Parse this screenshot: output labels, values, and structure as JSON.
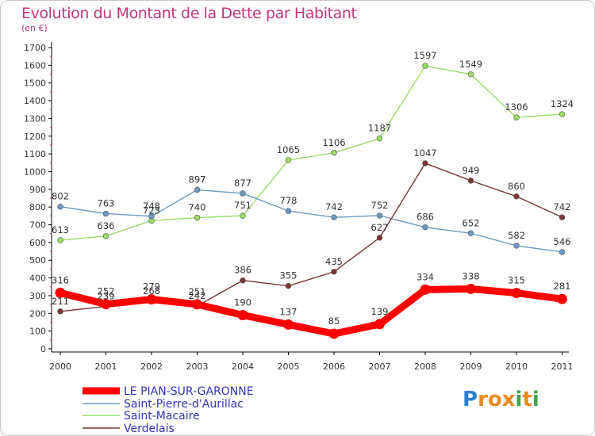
{
  "header": {
    "title": "Evolution du Montant de la Dette par Habitant",
    "subtitle": "(en €)"
  },
  "chart_data": {
    "type": "line",
    "title": "Evolution du Montant de la Dette par Habitant",
    "subtitle": "(en €)",
    "xlabel": "",
    "ylabel": "",
    "x": [
      "2000",
      "2001",
      "2002",
      "2003",
      "2004",
      "2005",
      "2006",
      "2007",
      "2008",
      "2009",
      "2010",
      "2011"
    ],
    "yticks": [
      0,
      100,
      200,
      300,
      400,
      500,
      600,
      700,
      800,
      900,
      1000,
      1100,
      1200,
      1300,
      1400,
      1500,
      1600,
      1700
    ],
    "ylim": [
      0,
      1700
    ],
    "grid": false,
    "legend_position": "bottom-left",
    "series": [
      {
        "name": "LE PIAN-SUR-GARONNE",
        "color": "#ff0000",
        "values": [
          316,
          252,
          279,
          251,
          190,
          137,
          85,
          139,
          334,
          338,
          315,
          281
        ],
        "labels": [
          "316",
          "252",
          "279",
          "251",
          "190",
          "137",
          "85",
          "139",
          "334",
          "338",
          "315",
          "281"
        ]
      },
      {
        "name": "Saint-Pierre-d'Aurillac",
        "color": "#6b9ac4",
        "values": [
          802,
          763,
          748,
          897,
          877,
          778,
          742,
          752,
          686,
          652,
          582,
          546
        ],
        "labels": [
          "802",
          "763",
          "748",
          "897",
          "877",
          "778",
          "742",
          "752",
          "686",
          "652",
          "582",
          "546"
        ]
      },
      {
        "name": "Saint-Macaire",
        "color": "#99dd66",
        "values": [
          613,
          636,
          723,
          740,
          751,
          1065,
          1106,
          1187,
          1597,
          1549,
          1306,
          1324
        ],
        "labels": [
          "613",
          "636",
          "723",
          "740",
          "751",
          "1065",
          "1106",
          "1187",
          "1597",
          "1549",
          "1306",
          "1324"
        ]
      },
      {
        "name": "Verdelais",
        "color": "#7b3535",
        "values": [
          211,
          239,
          268,
          242,
          386,
          355,
          435,
          627,
          1047,
          949,
          860,
          742
        ],
        "labels": [
          "211",
          "239",
          "268",
          "242",
          "386",
          "355",
          "435",
          "627",
          "1047",
          "949",
          "860",
          "742"
        ]
      }
    ]
  },
  "logo": {
    "text": "Proxiti",
    "letters": [
      "P",
      "r",
      "o",
      "x",
      "i",
      "t",
      "i"
    ],
    "colors": [
      "#2b7fd0",
      "#e8891c",
      "#e8891c",
      "#e8891c",
      "#3aa84a",
      "#e8891c",
      "#3aa84a"
    ]
  }
}
